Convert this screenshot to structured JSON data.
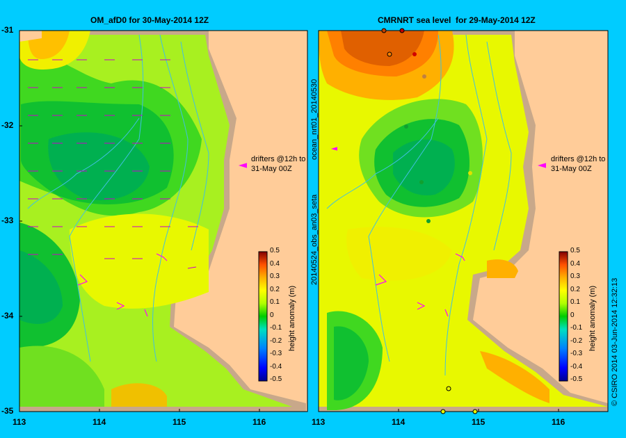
{
  "left_panel": {
    "title": "OM_afD0 for 30-May-2014 12Z",
    "drifter_note_line1": "drifters @12h to",
    "drifter_note_line2": "31-May 00Z"
  },
  "right_panel": {
    "title": "CMRNRT sea level  for 29-May-2014 12Z",
    "drifter_note_line1": "drifters @12h to",
    "drifter_note_line2": "31-May 00Z",
    "side_label_top": "ocean_nrt01_20140530",
    "side_label_bottom": "20140524_obs_an03_seta"
  },
  "y_axis": {
    "ticks": [
      "-31",
      "-32",
      "-33",
      "-34",
      "-35"
    ]
  },
  "x_axis_left": {
    "ticks": [
      "113",
      "114",
      "115",
      "116"
    ]
  },
  "x_axis_right": {
    "ticks": [
      "113",
      "114",
      "115",
      "116"
    ]
  },
  "colorbar": {
    "label": "height anomaly (m)",
    "ticks": [
      "0.5",
      "0.4",
      "0.3",
      "0.2",
      "0.1",
      "0",
      "-0.1",
      "-0.2",
      "-0.3",
      "-0.4",
      "-0.5"
    ]
  },
  "credit": "© CSIRO 2014   03-Jun-2014 12:32:13",
  "colors": {
    "background": "#00ccff",
    "land": "#ffcc99",
    "shelf": "#c8a88a",
    "drifter_arrow": "#ff00ff"
  }
}
